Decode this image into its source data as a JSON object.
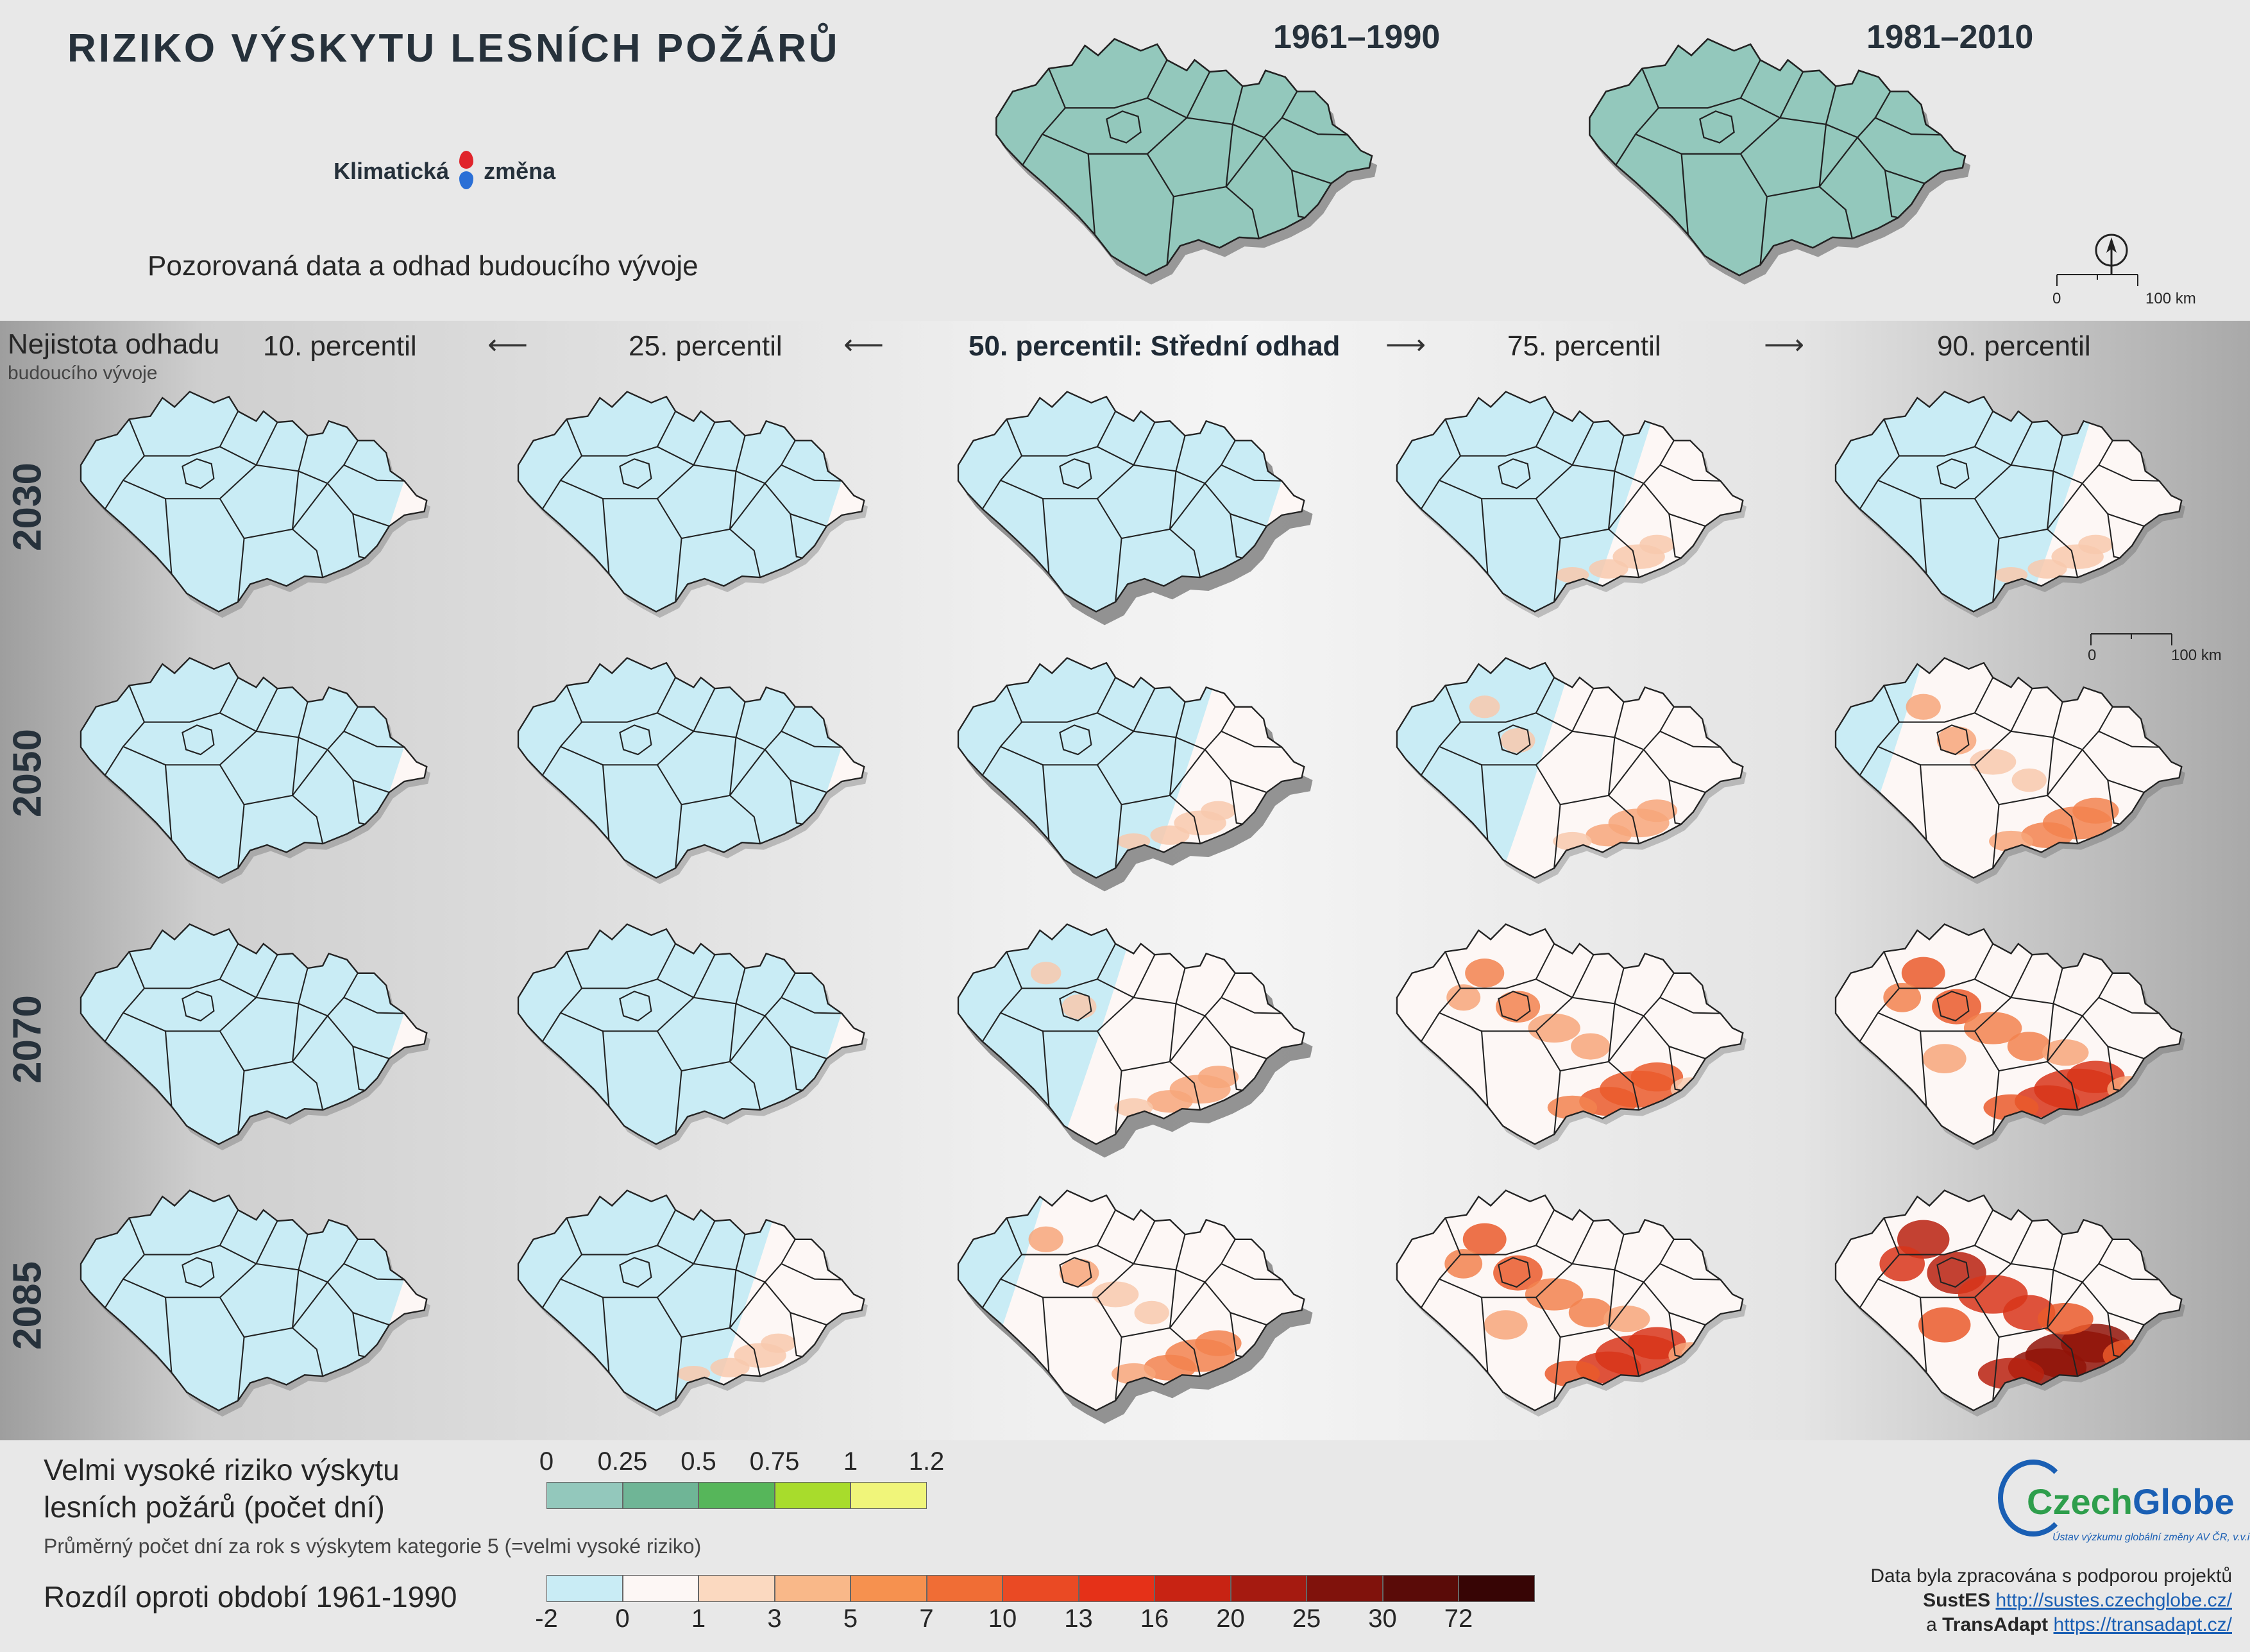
{
  "title": "RIZIKO VÝSKYTU LESNÍCH POŽÁRŮ",
  "brand": {
    "left": "Klimatická",
    "right": "změna"
  },
  "subtitle": "Pozorovaná data a odhad budoucího vývoje",
  "observed_periods": [
    "1961–1990",
    "1981–2010"
  ],
  "uncertainty": {
    "title": "Nejistota odhadu",
    "subtitle": "budoucího vývoje"
  },
  "percentiles": [
    "10. percentil",
    "25. percentil",
    "50. percentil: Střední odhad",
    "75. percentil",
    "90. percentil"
  ],
  "years": [
    "2030",
    "2050",
    "2070",
    "2085"
  ],
  "scale": {
    "start": "0",
    "end": "100 km"
  },
  "legend_absolute": {
    "title_line1": "Velmi vysoké riziko výskytu",
    "title_line2": "lesních požárů (počet dní)",
    "subtitle": "Průměrný počet dní za rok s výskytem kategorie 5 (=velmi vysoké riziko)",
    "ticks": [
      "0",
      "0.25",
      "0.5",
      "0.75",
      "1",
      "1.2"
    ],
    "colors": [
      "#93c8bc",
      "#6fb596",
      "#56b65a",
      "#a8dc2c",
      "#f0f57a"
    ]
  },
  "legend_difference": {
    "title": "Rozdíl oproti období 1961-1990",
    "ticks": [
      "-2",
      "0",
      "1",
      "3",
      "5",
      "7",
      "10",
      "13",
      "16",
      "20",
      "25",
      "30",
      "72"
    ],
    "colors": [
      "#c9ecf5",
      "#fdf7f5",
      "#fbd9c0",
      "#f9b889",
      "#f6914f",
      "#f06d35",
      "#ea4a24",
      "#e53118",
      "#c82313",
      "#a51a10",
      "#80120c",
      "#5a0b08",
      "#370505"
    ]
  },
  "logo": {
    "name_a": "Czech",
    "name_b": "Globe",
    "subtitle": "Ústav výzkumu globální změny AV ČR, v.v.i."
  },
  "credits": {
    "line1": "Data byla zpracována s podporou projektů",
    "p1": "SustES",
    "p1_url": "http://sustes.czechglobe.cz/",
    "conj": "a",
    "p2": "TransAdapt",
    "p2_url": "https://transadapt.cz/"
  },
  "map_scenarios": {
    "percentile_order": [
      "10",
      "25",
      "50",
      "75",
      "90"
    ],
    "intensity_by_year_and_percentile": {
      "2030": [
        0,
        0,
        0,
        1,
        1
      ],
      "2050": [
        0,
        0,
        1,
        2,
        3
      ],
      "2070": [
        0,
        0,
        2,
        4,
        5
      ],
      "2085": [
        0,
        1,
        3,
        5,
        7
      ]
    }
  }
}
